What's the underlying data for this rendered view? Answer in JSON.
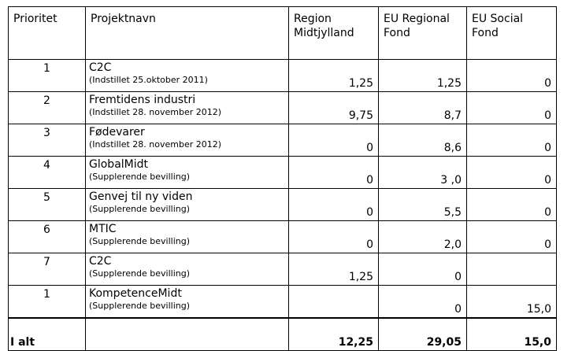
{
  "headers": {
    "priority": "Prioritet",
    "project": "Projektnavn",
    "region": "Region Midtjylland",
    "eu_regional": "EU Regional Fond",
    "eu_social": "EU Social Fond"
  },
  "rows": [
    {
      "priority": "1",
      "name": "C2C",
      "note": "(Indstillet 25.oktober 2011)",
      "region": "1,25",
      "eu_regional": "1,25",
      "eu_social": "0"
    },
    {
      "priority": "2",
      "name": "Fremtidens industri",
      "note": "(Indstillet 28. november 2012)",
      "region": "9,75",
      "eu_regional": "8,7",
      "eu_social": "0"
    },
    {
      "priority": "3",
      "name": "Fødevarer",
      "note": "(Indstillet 28. november 2012)",
      "region": "0",
      "eu_regional": "8,6",
      "eu_social": "0"
    },
    {
      "priority": "4",
      "name": "GlobalMidt",
      "note": "(Supplerende bevilling)",
      "region": "0",
      "eu_regional": "3 ,0",
      "eu_social": "0"
    },
    {
      "priority": "5",
      "name": "Genvej til ny viden",
      "note": "(Supplerende bevilling)",
      "region": "0",
      "eu_regional": "5,5",
      "eu_social": "0"
    },
    {
      "priority": "6",
      "name": "MTIC",
      "note": "(Supplerende bevilling)",
      "region": "0",
      "eu_regional": "2,0",
      "eu_social": "0"
    },
    {
      "priority": "7",
      "name": "C2C",
      "note": "(Supplerende bevilling)",
      "region": "1,25",
      "eu_regional": "0",
      "eu_social": ""
    },
    {
      "priority": "1",
      "name": "KompetenceMidt",
      "note": "(Supplerende bevilling)",
      "region": "",
      "eu_regional": "0",
      "eu_social": "15,0"
    }
  ],
  "total": {
    "label": "I alt",
    "region": "12,25",
    "eu_regional": "29,05",
    "eu_social": "15,0"
  }
}
